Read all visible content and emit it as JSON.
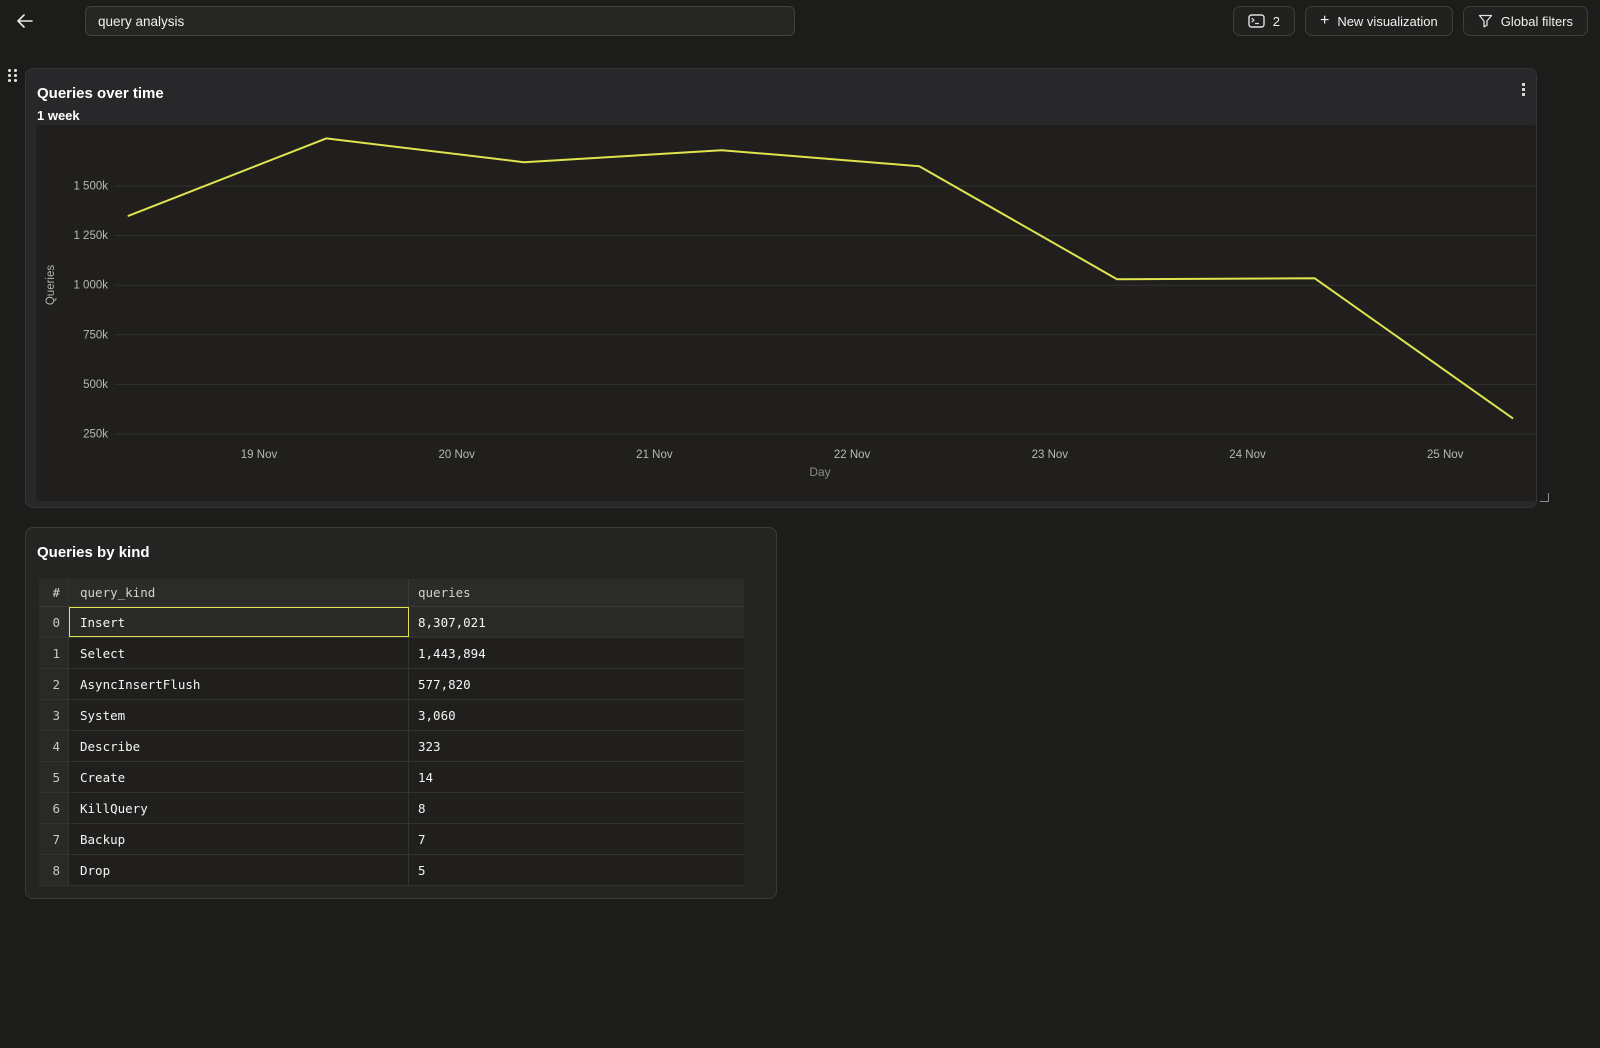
{
  "topbar": {
    "back_button": {
      "icon": "back-arrow-icon"
    },
    "title_input": {
      "value": "query analysis"
    },
    "console_button": {
      "icon": "sql-console-icon",
      "count": "2"
    },
    "new_visualization_button": {
      "icon": "plus-icon",
      "label": "New visualization"
    },
    "global_filters_button": {
      "icon": "funnel-icon",
      "label": "Global filters"
    }
  },
  "chart_data": {
    "type": "line",
    "title": "Queries over time",
    "subtitle": "1 week",
    "xlabel": "Day",
    "ylabel": "Queries",
    "grid": "horizontal",
    "legend": "none",
    "line_color": "#dfe44f",
    "axis_text_color": "#b8b8b6",
    "grid_color": "#30302e",
    "x_ticks": [
      {
        "label": "19 Nov",
        "day_offset": 0
      },
      {
        "label": "20 Nov",
        "day_offset": 1
      },
      {
        "label": "21 Nov",
        "day_offset": 2
      },
      {
        "label": "22 Nov",
        "day_offset": 3
      },
      {
        "label": "23 Nov",
        "day_offset": 4
      },
      {
        "label": "24 Nov",
        "day_offset": 5
      },
      {
        "label": "25 Nov",
        "day_offset": 6
      }
    ],
    "y_ticks": [
      {
        "label": "250k",
        "value": 250000
      },
      {
        "label": "500k",
        "value": 500000
      },
      {
        "label": "750k",
        "value": 750000
      },
      {
        "label": "1 000k",
        "value": 1000000
      },
      {
        "label": "1 250k",
        "value": 1250000
      },
      {
        "label": "1 500k",
        "value": 1500000
      }
    ],
    "series": [
      {
        "name": "Queries",
        "points": [
          {
            "date": "18 Nov",
            "day_offset": -0.66,
            "value": 1350000
          },
          {
            "date": "19 Nov",
            "day_offset": 0.34,
            "value": 1740000
          },
          {
            "date": "20 Nov",
            "day_offset": 1.34,
            "value": 1620000
          },
          {
            "date": "21 Nov",
            "day_offset": 2.34,
            "value": 1680000
          },
          {
            "date": "22 Nov",
            "day_offset": 3.34,
            "value": 1600000
          },
          {
            "date": "23 Nov",
            "day_offset": 4.34,
            "value": 1030000
          },
          {
            "date": "24 Nov",
            "day_offset": 5.34,
            "value": 1035000
          },
          {
            "date": "25 Nov",
            "day_offset": 6.34,
            "value": 330000
          }
        ]
      }
    ]
  },
  "table_panel": {
    "title": "Queries by kind",
    "columns": [
      "#",
      "query_kind",
      "queries"
    ],
    "rows": [
      [
        "0",
        "Insert",
        "8,307,021"
      ],
      [
        "1",
        "Select",
        "1,443,894"
      ],
      [
        "2",
        "AsyncInsertFlush",
        "577,820"
      ],
      [
        "3",
        "System",
        "3,060"
      ],
      [
        "4",
        "Describe",
        "323"
      ],
      [
        "5",
        "Create",
        "14"
      ],
      [
        "6",
        "KillQuery",
        "8"
      ],
      [
        "7",
        "Backup",
        "7"
      ],
      [
        "8",
        "Drop",
        "5"
      ]
    ],
    "selected_cell": {
      "row_index": 0,
      "column": "query_kind"
    }
  },
  "colors": {
    "page_bg": "#1c1c1a",
    "panel_bg": "#28282a",
    "plot_bg": "#201f1d",
    "accent": "#dfe44f"
  }
}
